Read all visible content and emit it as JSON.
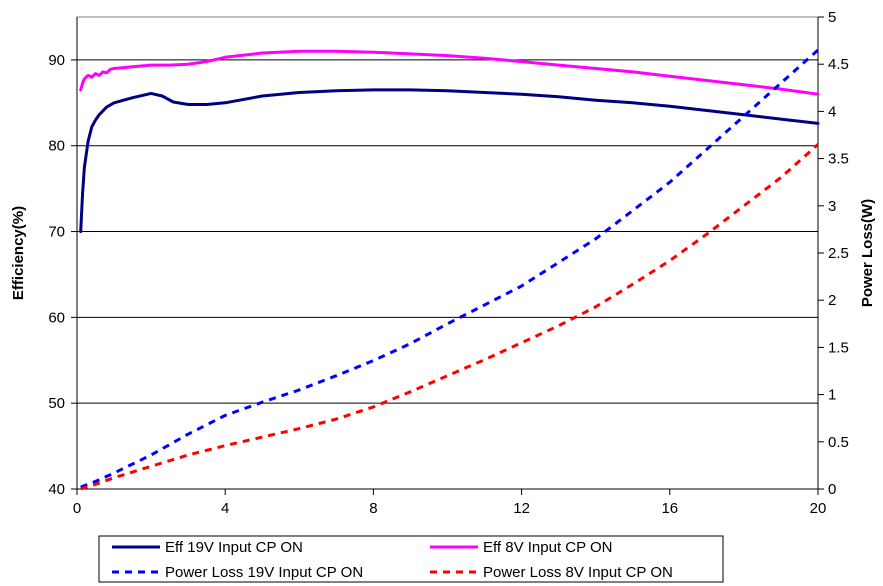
{
  "chart_data": {
    "type": "line",
    "title": "",
    "xlabel": "",
    "ylabel_left": "Efficiency(%)",
    "ylabel_right": "Power Loss(W)",
    "xlim": [
      0,
      20
    ],
    "ylim_left": [
      40,
      95
    ],
    "ylim_right": [
      0,
      5
    ],
    "x_ticks": [
      "0",
      "4",
      "8",
      "12",
      "16",
      "20"
    ],
    "y_left_ticks": [
      "40",
      "50",
      "60",
      "70",
      "80",
      "90"
    ],
    "y_right_ticks": [
      "0",
      "0.5",
      "1",
      "1.5",
      "2",
      "2.5",
      "3",
      "3.5",
      "4",
      "4.5",
      "5"
    ],
    "grid": "horizontal",
    "legend_position": "bottom",
    "series": [
      {
        "name": "Eff 19V Input CP ON",
        "axis": "left",
        "color": "#000080",
        "style": "solid",
        "x": [
          0.1,
          0.15,
          0.2,
          0.3,
          0.4,
          0.5,
          0.6,
          0.8,
          1.0,
          1.5,
          2.0,
          2.3,
          2.6,
          3.0,
          3.5,
          4.0,
          5.0,
          6.0,
          7.0,
          8.0,
          9.0,
          10.0,
          11.0,
          12.0,
          13.0,
          14.0,
          15.0,
          16.0,
          17.0,
          18.0,
          19.0,
          20.0
        ],
        "values": [
          70.0,
          74.5,
          77.5,
          80.5,
          82.2,
          83.0,
          83.6,
          84.5,
          85.0,
          85.6,
          86.1,
          85.8,
          85.1,
          84.8,
          84.8,
          85.0,
          85.8,
          86.2,
          86.4,
          86.5,
          86.5,
          86.4,
          86.2,
          86.0,
          85.7,
          85.3,
          85.0,
          84.6,
          84.1,
          83.6,
          83.1,
          82.6
        ]
      },
      {
        "name": "Eff 8V Input CP ON",
        "axis": "left",
        "color": "#ff00ff",
        "style": "solid",
        "x": [
          0.1,
          0.15,
          0.2,
          0.3,
          0.4,
          0.5,
          0.6,
          0.7,
          0.8,
          0.9,
          1.0,
          1.5,
          2.0,
          2.5,
          3.0,
          3.5,
          4.0,
          5.0,
          6.0,
          7.0,
          8.0,
          9.0,
          10.0,
          11.0,
          12.0,
          13.0,
          14.0,
          15.0,
          16.0,
          17.0,
          18.0,
          19.0,
          20.0
        ],
        "values": [
          86.5,
          87.3,
          87.8,
          88.2,
          88.0,
          88.4,
          88.2,
          88.6,
          88.5,
          88.9,
          89.0,
          89.2,
          89.4,
          89.4,
          89.5,
          89.8,
          90.3,
          90.8,
          91.0,
          91.0,
          90.9,
          90.7,
          90.5,
          90.2,
          89.8,
          89.4,
          89.0,
          88.6,
          88.1,
          87.6,
          87.1,
          86.6,
          86.0
        ]
      },
      {
        "name": "Power Loss 19V Input CP ON",
        "axis": "right",
        "color": "#0000ff",
        "style": "dashed",
        "x": [
          0.1,
          0.5,
          1.0,
          2.0,
          3.0,
          4.0,
          5.0,
          6.0,
          7.0,
          8.0,
          9.0,
          10.0,
          11.0,
          12.0,
          13.0,
          14.0,
          15.0,
          16.0,
          17.0,
          18.0,
          19.0,
          20.0
        ],
        "values": [
          0.02,
          0.08,
          0.17,
          0.36,
          0.58,
          0.78,
          0.92,
          1.05,
          1.2,
          1.36,
          1.54,
          1.75,
          1.95,
          2.15,
          2.4,
          2.65,
          2.95,
          3.25,
          3.6,
          3.95,
          4.3,
          4.65
        ]
      },
      {
        "name": "Power Loss 8V Input CP ON",
        "axis": "right",
        "color": "#ff0000",
        "style": "dashed",
        "x": [
          0.1,
          0.5,
          1.0,
          2.0,
          3.0,
          4.0,
          5.0,
          6.0,
          7.0,
          8.0,
          9.0,
          10.0,
          11.0,
          12.0,
          13.0,
          14.0,
          15.0,
          16.0,
          17.0,
          18.0,
          19.0,
          20.0
        ],
        "values": [
          0.0,
          0.05,
          0.12,
          0.24,
          0.36,
          0.46,
          0.55,
          0.64,
          0.74,
          0.87,
          1.03,
          1.2,
          1.37,
          1.55,
          1.73,
          1.93,
          2.17,
          2.42,
          2.7,
          3.0,
          3.3,
          3.65
        ]
      }
    ]
  }
}
